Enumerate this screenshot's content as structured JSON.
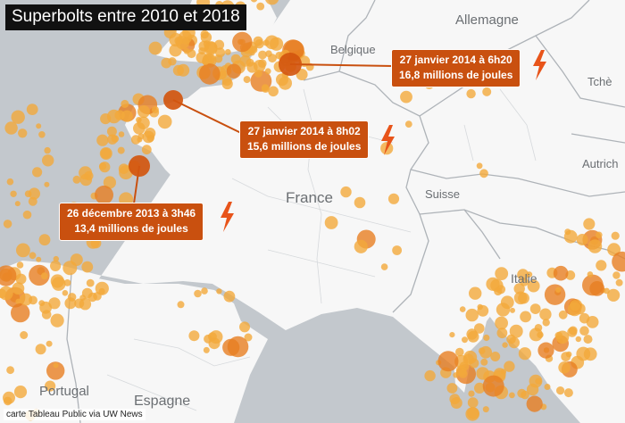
{
  "title": "Superbolts entre 2010 et 2018",
  "credit": "carte Tableau Public via UW News",
  "colors": {
    "land": "#f7f7f7",
    "sea": "#c3c8cd",
    "border": "#aeb3b8",
    "dot": "#f2a93b",
    "dot_large": "#e77e22",
    "dot_major": "#d2560f",
    "callout_bg": "#c9500f",
    "bolt": "#e8541a"
  },
  "places": [
    {
      "id": "belgique",
      "label": "Belgique"
    },
    {
      "id": "allemagne",
      "label": "Allemagne"
    },
    {
      "id": "tcheque",
      "label": "Tchè"
    },
    {
      "id": "autriche",
      "label": "Autrich"
    },
    {
      "id": "france",
      "label": "France"
    },
    {
      "id": "suisse",
      "label": "Suisse"
    },
    {
      "id": "italie",
      "label": "Italie"
    },
    {
      "id": "portugal",
      "label": "Portugal"
    },
    {
      "id": "espagne",
      "label": "Espagne"
    }
  ],
  "callouts": [
    {
      "id": "c1",
      "date": "27 janvier 2014 à 6h20",
      "energy": "16,8 millions de joules"
    },
    {
      "id": "c2",
      "date": "27 janvier 2014 à 8h02",
      "energy": "15,6 millions de joules"
    },
    {
      "id": "c3",
      "date": "26 décembre 2013 à 3h46",
      "energy": "13,4 millions de joules"
    }
  ],
  "bolt_icon": "lightning-icon"
}
